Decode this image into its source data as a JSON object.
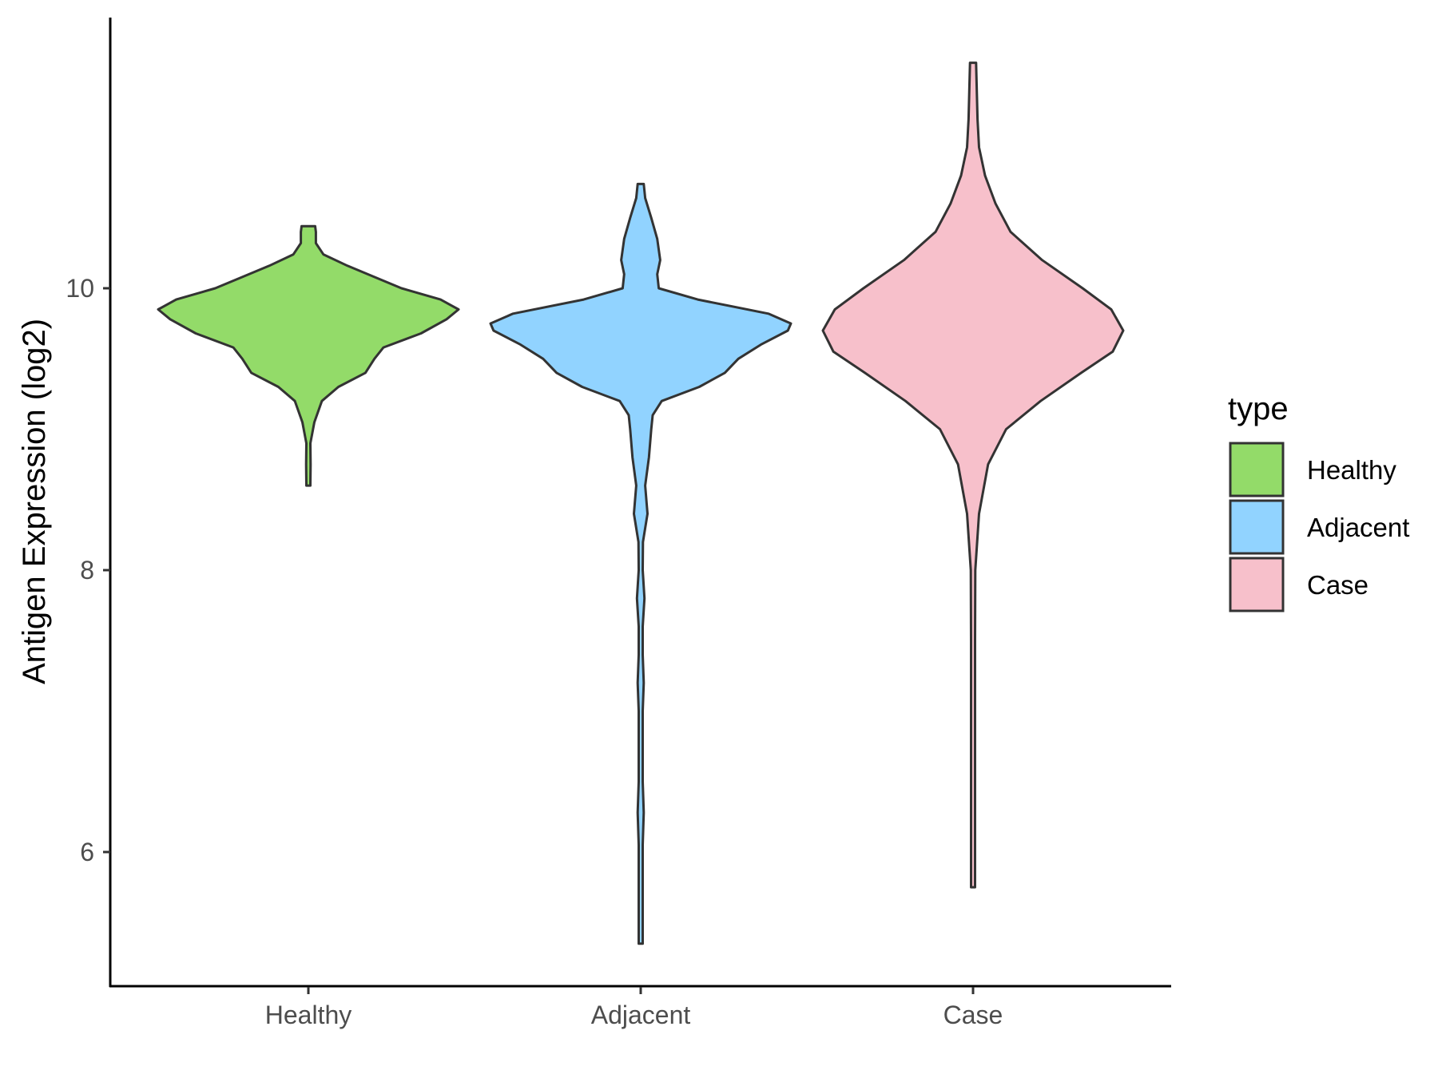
{
  "chart_data": {
    "type": "violin",
    "title": "",
    "xlabel": "",
    "ylabel": "Antigen Expression (log2)",
    "ylim": [
      5.0,
      11.9
    ],
    "yticks": [
      6,
      8,
      10
    ],
    "ytick_labels": [
      "6",
      "8",
      "10"
    ],
    "categories": [
      "Healthy",
      "Adjacent",
      "Case"
    ],
    "grid": false,
    "legend": {
      "title": "type",
      "position": "right",
      "entries": [
        "Healthy",
        "Adjacent",
        "Case"
      ]
    },
    "series": [
      {
        "name": "Healthy",
        "color": "#93DB69",
        "min": 8.6,
        "max": 10.44,
        "density": [
          [
            8.6,
            0.012
          ],
          [
            8.75,
            0.015
          ],
          [
            8.9,
            0.012
          ],
          [
            9.05,
            0.04
          ],
          [
            9.2,
            0.09
          ],
          [
            9.3,
            0.2
          ],
          [
            9.4,
            0.38
          ],
          [
            9.5,
            0.44
          ],
          [
            9.58,
            0.5
          ],
          [
            9.68,
            0.75
          ],
          [
            9.78,
            0.92
          ],
          [
            9.85,
            1.0
          ],
          [
            9.92,
            0.88
          ],
          [
            10.0,
            0.62
          ],
          [
            10.08,
            0.44
          ],
          [
            10.16,
            0.26
          ],
          [
            10.24,
            0.1
          ],
          [
            10.32,
            0.05
          ],
          [
            10.4,
            0.05
          ],
          [
            10.44,
            0.045
          ]
        ]
      },
      {
        "name": "Adjacent",
        "color": "#91D3FF",
        "min": 5.35,
        "max": 10.74,
        "density": [
          [
            5.35,
            0.01
          ],
          [
            5.55,
            0.008
          ],
          [
            5.8,
            0.006
          ],
          [
            6.05,
            0.006
          ],
          [
            6.28,
            0.02
          ],
          [
            6.5,
            0.006
          ],
          [
            6.8,
            0.006
          ],
          [
            7.0,
            0.008
          ],
          [
            7.2,
            0.02
          ],
          [
            7.4,
            0.008
          ],
          [
            7.6,
            0.01
          ],
          [
            7.8,
            0.025
          ],
          [
            8.0,
            0.01
          ],
          [
            8.2,
            0.015
          ],
          [
            8.4,
            0.045
          ],
          [
            8.6,
            0.03
          ],
          [
            8.8,
            0.055
          ],
          [
            9.0,
            0.07
          ],
          [
            9.1,
            0.08
          ],
          [
            9.2,
            0.14
          ],
          [
            9.3,
            0.39
          ],
          [
            9.4,
            0.56
          ],
          [
            9.5,
            0.65
          ],
          [
            9.6,
            0.8
          ],
          [
            9.7,
            0.98
          ],
          [
            9.75,
            1.0
          ],
          [
            9.82,
            0.85
          ],
          [
            9.92,
            0.38
          ],
          [
            10.0,
            0.12
          ],
          [
            10.1,
            0.11
          ],
          [
            10.2,
            0.13
          ],
          [
            10.35,
            0.11
          ],
          [
            10.5,
            0.07
          ],
          [
            10.64,
            0.03
          ],
          [
            10.74,
            0.02
          ]
        ]
      },
      {
        "name": "Case",
        "color": "#F7C0CB",
        "min": 5.75,
        "max": 11.6,
        "density": [
          [
            5.75,
            0.006
          ],
          [
            6.4,
            0.006
          ],
          [
            7.0,
            0.006
          ],
          [
            7.5,
            0.01
          ],
          [
            8.0,
            0.015
          ],
          [
            8.4,
            0.04
          ],
          [
            8.75,
            0.1
          ],
          [
            9.0,
            0.22
          ],
          [
            9.2,
            0.45
          ],
          [
            9.4,
            0.72
          ],
          [
            9.55,
            0.93
          ],
          [
            9.7,
            1.0
          ],
          [
            9.85,
            0.92
          ],
          [
            10.0,
            0.73
          ],
          [
            10.2,
            0.46
          ],
          [
            10.4,
            0.25
          ],
          [
            10.6,
            0.15
          ],
          [
            10.8,
            0.08
          ],
          [
            11.0,
            0.04
          ],
          [
            11.2,
            0.03
          ],
          [
            11.4,
            0.025
          ],
          [
            11.6,
            0.02
          ]
        ]
      }
    ]
  }
}
